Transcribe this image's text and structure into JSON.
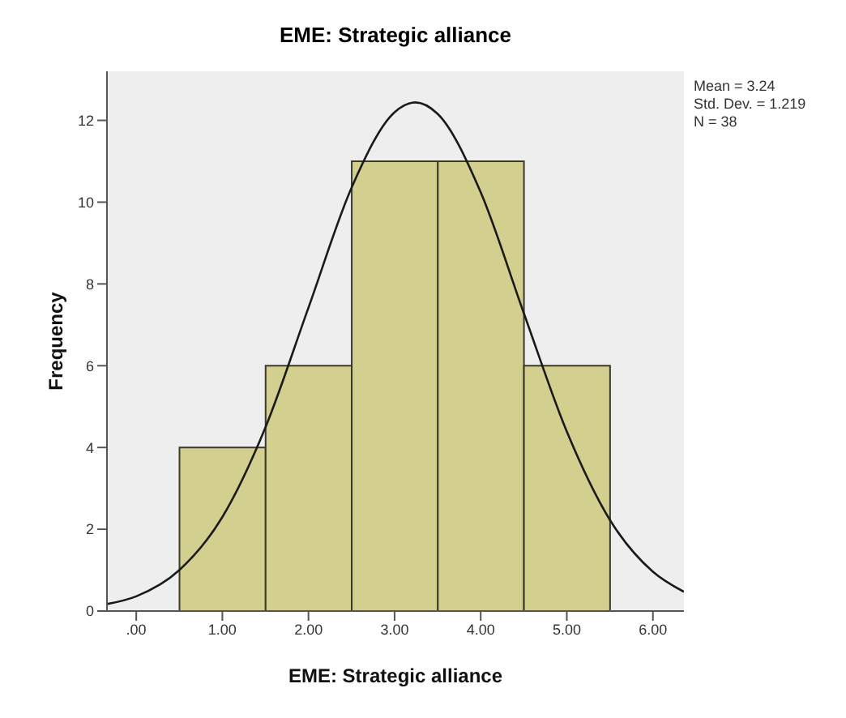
{
  "chart_data": {
    "type": "histogram",
    "title": "EME: Strategic alliance",
    "xlabel": "EME: Strategic alliance",
    "ylabel": "Frequency",
    "bins": [
      0.5,
      1.5,
      2.5,
      3.5,
      4.5,
      5.5
    ],
    "values": [
      4,
      6,
      11,
      11,
      6
    ],
    "color": "#d3cf8e",
    "series": [
      {
        "type": "line",
        "color": "#1a1a1a",
        "x": [
          -0.34,
          0,
          0.5,
          1,
          1.5,
          2,
          2.5,
          3,
          3.24,
          3.5,
          4,
          4.5,
          5,
          5.5,
          6,
          6.36
        ],
        "values": [
          0.17,
          0.36,
          1,
          2.3,
          4.49,
          7.42,
          10.35,
          12.2,
          12.44,
          12.16,
          10.24,
          7.29,
          4.39,
          2.23,
          0.96,
          0.47
        ]
      }
    ],
    "xlim": [
      -0.34,
      6.36
    ],
    "xticks": [
      {
        "value": 0,
        "label": ".00"
      },
      {
        "value": 1,
        "label": "1.00"
      },
      {
        "value": 2,
        "label": "2.00"
      },
      {
        "value": 3,
        "label": "3.00"
      },
      {
        "value": 4,
        "label": "4.00"
      },
      {
        "value": 5,
        "label": "5.00"
      },
      {
        "value": 6,
        "label": "6.00"
      }
    ],
    "ylim": [
      0,
      13.2
    ],
    "yticks": [
      0,
      2,
      4,
      6,
      8,
      10,
      12
    ],
    "annotations": [
      "Mean = 3.24",
      "Std. Dev. = 1.219",
      "N = 38"
    ]
  }
}
